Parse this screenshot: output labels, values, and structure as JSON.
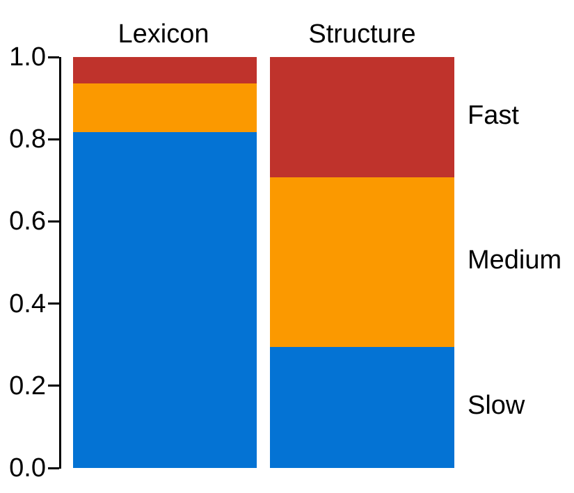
{
  "figure": {
    "background": "#ffffff",
    "text_color": "#000000",
    "axis_color": "#000000"
  },
  "chart_data": {
    "type": "bar",
    "stacked": true,
    "orientation": "vertical",
    "title": "",
    "xlabel": "",
    "ylabel": "",
    "categories": [
      "Lexicon",
      "Structure"
    ],
    "series": [
      {
        "name": "Slow",
        "color": "#0473D4",
        "values": [
          0.818,
          0.295
        ]
      },
      {
        "name": "Medium",
        "color": "#FB9900",
        "values": [
          0.118,
          0.412
        ]
      },
      {
        "name": "Fast",
        "color": "#BF332C",
        "values": [
          0.064,
          0.293
        ]
      }
    ],
    "ylim": [
      0.0,
      1.0
    ],
    "yticks": [
      "0.0",
      "0.2",
      "0.4",
      "0.6",
      "0.8",
      "1.0"
    ],
    "grid": false,
    "legend_position": "right",
    "legend_labels_top_to_bottom": [
      "Fast",
      "Medium",
      "Slow"
    ]
  }
}
